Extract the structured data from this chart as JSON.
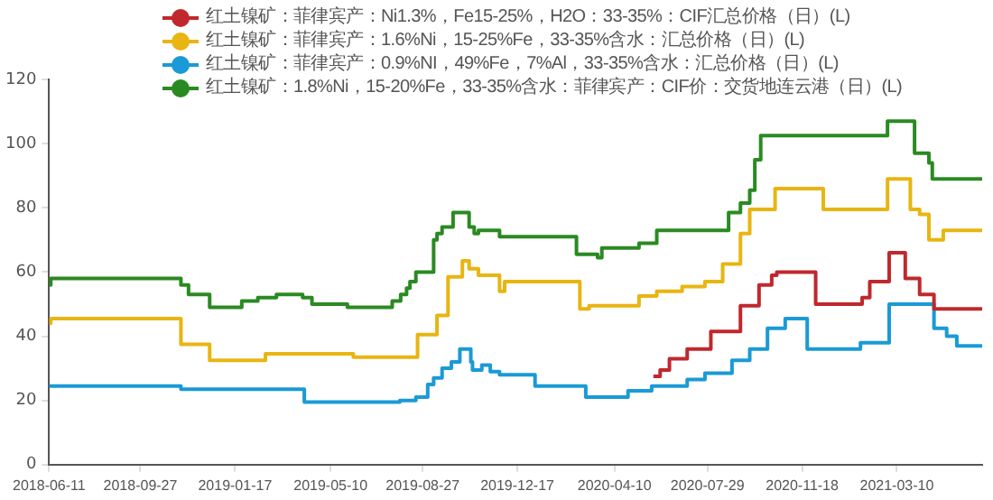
{
  "chart_data": {
    "type": "step",
    "legend": "top",
    "grid": false,
    "xlim": [
      "2018-06-11",
      "2021-06-19"
    ],
    "xticks": [
      "2018-06-11",
      "2018-09-27",
      "2019-01-17",
      "2019-05-10",
      "2019-08-27",
      "2019-12-17",
      "2020-04-10",
      "2020-07-29",
      "2020-11-18",
      "2021-03-10"
    ],
    "ylim": [
      0,
      120
    ],
    "yticks": [
      0,
      20,
      40,
      60,
      80,
      100,
      120
    ],
    "series": [
      {
        "name": "红土镍矿：菲律宾产：Ni1.3%，Fe15-25%，H2O：33-35%：CIF汇总价格（日）(L)",
        "color": "#c0282d",
        "x": [
          "2020-05-26",
          "2020-06-03",
          "2020-06-14",
          "2020-07-05",
          "2020-08-02",
          "2020-09-06",
          "2020-09-28",
          "2020-10-13",
          "2020-10-19",
          "2020-12-04",
          "2021-01-28",
          "2021-02-06",
          "2021-03-01",
          "2021-03-20",
          "2021-04-06",
          "2021-04-23",
          "2021-06-19"
        ],
        "values": [
          27.5,
          29.5,
          33,
          36,
          41.5,
          49.5,
          56,
          59,
          60,
          50,
          52,
          57,
          66,
          58,
          53,
          48.5,
          48.5
        ]
      },
      {
        "name": "红土镍矿：菲律宾产：1.6%Ni，15-25%Fe，33-35%含水：汇总价格（日）(L)",
        "color": "#e8b512",
        "x": [
          "2018-06-11",
          "2018-06-13",
          "2018-11-14",
          "2018-12-18",
          "2019-02-22",
          "2019-06-06",
          "2019-08-21",
          "2019-09-13",
          "2019-09-26",
          "2019-10-13",
          "2019-10-21",
          "2019-11-01",
          "2019-11-26",
          "2019-12-02",
          "2020-02-29",
          "2020-03-11",
          "2020-05-09",
          "2020-05-30",
          "2020-06-29",
          "2020-07-26",
          "2020-08-16",
          "2020-09-06",
          "2020-09-17",
          "2020-10-17",
          "2020-12-13",
          "2021-02-27",
          "2021-03-26",
          "2021-04-06",
          "2021-04-17",
          "2021-05-04",
          "2021-06-19"
        ],
        "values": [
          44,
          45.5,
          37.5,
          32.5,
          34.5,
          33.5,
          40.5,
          46.5,
          58.5,
          63.5,
          61,
          59,
          54,
          57,
          48.5,
          49.5,
          52.5,
          54,
          55.5,
          57,
          62.5,
          72,
          79.5,
          86,
          79.5,
          89,
          79.5,
          78,
          70,
          73,
          73
        ]
      },
      {
        "name": "红土镍矿：菲律宾产：0.9%NI，49%Fe，7%Al，33-35%含水：汇总价格（日）(L)",
        "color": "#1a9ad6",
        "x": [
          "2018-06-11",
          "2018-11-14",
          "2019-04-09",
          "2019-07-31",
          "2019-08-19",
          "2019-09-02",
          "2019-09-09",
          "2019-09-19",
          "2019-09-30",
          "2019-10-10",
          "2019-10-23",
          "2019-10-25",
          "2019-11-05",
          "2019-11-15",
          "2019-11-26",
          "2020-01-07",
          "2020-03-07",
          "2020-04-26",
          "2020-05-24",
          "2020-07-05",
          "2020-07-26",
          "2020-08-27",
          "2020-09-17",
          "2020-10-08",
          "2020-10-29",
          "2020-11-24",
          "2021-01-26",
          "2021-03-01",
          "2021-04-23",
          "2021-05-08",
          "2021-05-20",
          "2021-06-19"
        ],
        "values": [
          24.5,
          23.5,
          19.5,
          20,
          21,
          25,
          27,
          30,
          32,
          36,
          32,
          29.5,
          31,
          29,
          28,
          24.5,
          21,
          23,
          24.5,
          26.5,
          28.5,
          32.5,
          36,
          42.5,
          45.5,
          36,
          38,
          50,
          42.5,
          40,
          37,
          37
        ]
      },
      {
        "name": "红土镍矿：1.8%Ni，15-20%Fe，33-35%含水：菲律宾产：CIF价：交货地连云港（日）(L)",
        "color": "#2a8a22",
        "x": [
          "2018-06-11",
          "2018-06-13",
          "2018-11-14",
          "2018-11-23",
          "2018-12-18",
          "2019-01-25",
          "2019-02-13",
          "2019-03-07",
          "2019-04-07",
          "2019-04-18",
          "2019-05-30",
          "2019-07-22",
          "2019-08-01",
          "2019-08-08",
          "2019-08-12",
          "2019-08-19",
          "2019-09-09",
          "2019-09-13",
          "2019-09-19",
          "2019-10-02",
          "2019-10-21",
          "2019-10-27",
          "2019-11-01",
          "2019-11-26",
          "2020-02-25",
          "2020-03-21",
          "2020-03-26",
          "2020-05-09",
          "2020-05-30",
          "2020-08-23",
          "2020-09-06",
          "2020-09-17",
          "2020-09-23",
          "2020-09-30",
          "2021-02-27",
          "2021-03-31",
          "2021-04-17",
          "2021-04-21",
          "2021-06-19"
        ],
        "values": [
          56,
          58,
          56,
          53,
          49,
          51,
          52,
          53,
          52,
          50,
          49,
          51,
          53,
          55,
          57,
          60,
          70,
          72,
          74,
          78.5,
          74,
          72,
          73,
          71,
          65.5,
          64.5,
          67.5,
          69,
          73,
          78.5,
          81.5,
          85.5,
          95,
          102.5,
          107,
          97,
          94,
          89,
          89
        ]
      }
    ]
  }
}
